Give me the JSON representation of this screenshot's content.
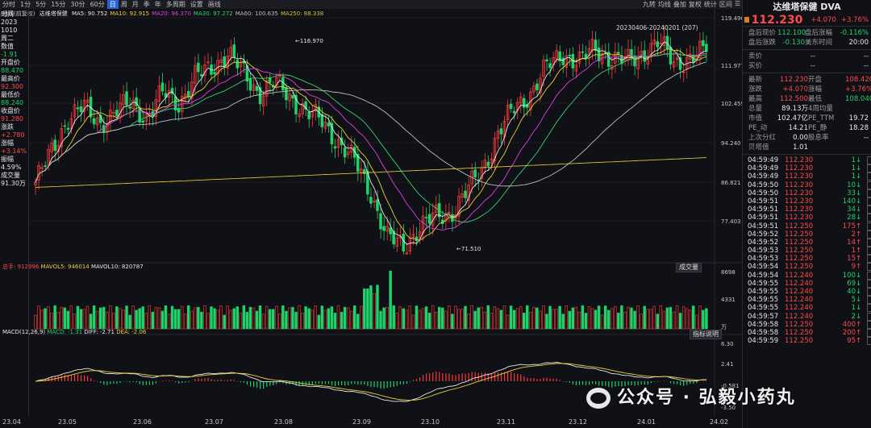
{
  "topbar": {
    "periods": [
      "分时",
      "1分",
      "5分",
      "15分",
      "30分",
      "60分",
      "日",
      "周",
      "月",
      "季",
      "年",
      "多周期",
      "设置",
      "画线"
    ],
    "active_period": "日",
    "tools": [
      "九转",
      "均线",
      "叠加",
      "复权",
      "统计",
      "区间",
      "☰"
    ]
  },
  "legend": {
    "title": "日线(前复权)",
    "name": "达维塔保健",
    "ma": [
      {
        "label": "MA5: 90.752",
        "color": "#e8e8e8"
      },
      {
        "label": "MA10: 92.915",
        "color": "#e8d23a"
      },
      {
        "label": "MA20: 96.370",
        "color": "#e040e0"
      },
      {
        "label": "MA30: 97.272",
        "color": "#3ad06a"
      },
      {
        "label": "MA60: 100.635",
        "color": "#bdbdbd"
      },
      {
        "label": "MA250: 88.338",
        "color": "#d6c23a"
      }
    ]
  },
  "range_label": "20230406-20240201 (207)",
  "left_panel": [
    {
      "t": "时间",
      "c": "white"
    },
    {
      "t": "2023",
      "c": "white"
    },
    {
      "t": "1010",
      "c": "white"
    },
    {
      "t": "周二",
      "c": "white"
    },
    {
      "t": "数值",
      "c": "white"
    },
    {
      "t": "-1.91",
      "c": "green"
    },
    {
      "t": "开盘价",
      "c": "white"
    },
    {
      "t": "88.470",
      "c": "green"
    },
    {
      "t": "最高价",
      "c": "white"
    },
    {
      "t": "92.300",
      "c": "red"
    },
    {
      "t": "最低价",
      "c": "white"
    },
    {
      "t": "88.240",
      "c": "green"
    },
    {
      "t": "收盘价",
      "c": "white"
    },
    {
      "t": "91.280",
      "c": "red"
    },
    {
      "t": "涨跌",
      "c": "white"
    },
    {
      "t": "+2.780",
      "c": "red"
    },
    {
      "t": "涨幅",
      "c": "white"
    },
    {
      "t": "+3.14%",
      "c": "red"
    },
    {
      "t": "振幅",
      "c": "white"
    },
    {
      "t": "4.59%",
      "c": "white"
    },
    {
      "t": "成交量",
      "c": "white"
    },
    {
      "t": "91.30万",
      "c": "white"
    }
  ],
  "price_axis": [
    "119.496",
    "111.977",
    "102.459",
    "94.240",
    "86.821",
    "77.403"
  ],
  "price_peak": "116.970",
  "price_low": "71.510",
  "volume": {
    "legend": [
      {
        "label": "总手: 912996",
        "color": "#ff4a4a"
      },
      {
        "label": "MAVOL5: 946014",
        "color": "#e8d23a"
      },
      {
        "label": "MAVOL10: 820787",
        "color": "#e8e8e8"
      }
    ],
    "button": "成交量",
    "axis": [
      "8698",
      "4331",
      "万"
    ]
  },
  "macd": {
    "legend": [
      {
        "label": "MACD(12,26,9)",
        "color": "#e8e8e8"
      },
      {
        "label": "MACD: -1.31",
        "color": "#1fd36b"
      },
      {
        "label": "DIFF: -2.71",
        "color": "#e8e8e8"
      },
      {
        "label": "DEA: -2.06",
        "color": "#e8d23a"
      }
    ],
    "button": "指标说明",
    "axis": [
      "6.30",
      "2.41",
      "-0.581",
      "-3.50"
    ]
  },
  "x_axis": [
    "23.04",
    "23.05",
    "23.06",
    "23.07",
    "23.08",
    "23.09",
    "23.10",
    "23.11",
    "23.12",
    "24.01",
    "24.02"
  ],
  "quote": {
    "name": "达维塔保健 DVA",
    "price": "112.230",
    "change": "+4.070",
    "pct": "+3.76%",
    "after_rows": [
      {
        "l": "盘后现价",
        "v": "112.100",
        "v_cls": "green",
        "l2": "盘后涨幅",
        "v2": "-0.116%",
        "v2_cls": "green"
      },
      {
        "l": "盘后涨跌",
        "v": "-0.130",
        "v_cls": "green",
        "l2": "美东时间",
        "v2": "20:00",
        "v2_cls": "white"
      }
    ],
    "book": [
      {
        "l": "卖价",
        "a": "--",
        "b": "--"
      },
      {
        "l": "买价",
        "a": "--",
        "b": "--"
      }
    ],
    "stats": [
      {
        "l": "最新",
        "v": "112.230",
        "vc": "red",
        "l2": "开盘",
        "v2": "108.420",
        "v2c": "red"
      },
      {
        "l": "涨跌",
        "v": "+4.070",
        "vc": "red",
        "l2": "涨幅",
        "v2": "+3.76%",
        "v2c": "red"
      },
      {
        "l": "最高",
        "v": "112.500",
        "vc": "red",
        "l2": "最低",
        "v2": "108.040",
        "v2c": "green"
      },
      {
        "l": "总量",
        "v": "89.13万",
        "vc": "white",
        "l2": "4周均量",
        "v2": "",
        "v2c": "white"
      },
      {
        "l": "市值",
        "v": "102.47亿",
        "vc": "white",
        "l2": "PE_TTM",
        "v2": "19.72",
        "v2c": "white"
      },
      {
        "l": "PE_动",
        "v": "14.21",
        "vc": "white",
        "l2": "PE_静",
        "v2": "18.28",
        "v2c": "white"
      },
      {
        "l": "上次分红",
        "v": "0.00",
        "vc": "white",
        "l2": "股息率",
        "v2": "--",
        "v2c": "white"
      },
      {
        "l": "贝塔值",
        "v": "1.01",
        "vc": "white",
        "l2": "",
        "v2": "",
        "v2c": "white"
      }
    ],
    "ticks": [
      {
        "t": "04:59:49",
        "p": "112.230",
        "pc": "red",
        "v": "1",
        "d": "down"
      },
      {
        "t": "04:59:49",
        "p": "112.230",
        "pc": "red",
        "v": "1",
        "d": "down"
      },
      {
        "t": "04:59:49",
        "p": "112.230",
        "pc": "red",
        "v": "1",
        "d": "down"
      },
      {
        "t": "04:59:50",
        "p": "112.230",
        "pc": "red",
        "v": "10",
        "d": "down"
      },
      {
        "t": "04:59:50",
        "p": "112.230",
        "pc": "red",
        "v": "33",
        "d": "down"
      },
      {
        "t": "04:59:51",
        "p": "112.230",
        "pc": "red",
        "v": "140",
        "d": "down"
      },
      {
        "t": "04:59:51",
        "p": "112.230",
        "pc": "red",
        "v": "34",
        "d": "down"
      },
      {
        "t": "04:59:51",
        "p": "112.230",
        "pc": "red",
        "v": "28",
        "d": "down"
      },
      {
        "t": "04:59:51",
        "p": "112.250",
        "pc": "red",
        "v": "175",
        "d": "up"
      },
      {
        "t": "04:59:52",
        "p": "112.250",
        "pc": "red",
        "v": "2",
        "d": "up"
      },
      {
        "t": "04:59:52",
        "p": "112.250",
        "pc": "red",
        "v": "14",
        "d": "up"
      },
      {
        "t": "04:59:53",
        "p": "112.250",
        "pc": "red",
        "v": "1",
        "d": "up"
      },
      {
        "t": "04:59:53",
        "p": "112.250",
        "pc": "red",
        "v": "15",
        "d": "up"
      },
      {
        "t": "04:59:54",
        "p": "112.250",
        "pc": "red",
        "v": "9",
        "d": "up"
      },
      {
        "t": "04:59:54",
        "p": "112.240",
        "pc": "red",
        "v": "100",
        "d": "down"
      },
      {
        "t": "04:59:55",
        "p": "112.240",
        "pc": "red",
        "v": "69",
        "d": "down"
      },
      {
        "t": "04:59:55",
        "p": "112.240",
        "pc": "red",
        "v": "40",
        "d": "down"
      },
      {
        "t": "04:59:55",
        "p": "112.240",
        "pc": "red",
        "v": "5",
        "d": "down"
      },
      {
        "t": "04:59:55",
        "p": "112.240",
        "pc": "red",
        "v": "1",
        "d": "down"
      },
      {
        "t": "04:59:57",
        "p": "112.240",
        "pc": "red",
        "v": "2",
        "d": "down"
      },
      {
        "t": "04:59:58",
        "p": "112.250",
        "pc": "red",
        "v": "400",
        "d": "up"
      },
      {
        "t": "04:59:58",
        "p": "112.250",
        "pc": "red",
        "v": "200",
        "d": "up"
      },
      {
        "t": "04:59:59",
        "p": "112.250",
        "pc": "red",
        "v": "95",
        "d": "up"
      }
    ]
  },
  "watermark": "公众号 · 弘毅小药丸",
  "chart_data": {
    "type": "candlestick",
    "title": "达维塔保健 DVA",
    "x_range": [
      "2023-04-06",
      "2024-02-01"
    ],
    "ylim": [
      71.51,
      119.496
    ],
    "approx_close_path": [
      86,
      92,
      99,
      101,
      98,
      100,
      102,
      99,
      104,
      102,
      107,
      109,
      112,
      108,
      104,
      106,
      103,
      100,
      98,
      94,
      90,
      84,
      75,
      73,
      77,
      79,
      80,
      84,
      89,
      96,
      101,
      104,
      109,
      112,
      110,
      113,
      111,
      110,
      112,
      114,
      110,
      111,
      112.23
    ],
    "high": 116.97,
    "low": 71.51,
    "last_close": 112.23
  }
}
